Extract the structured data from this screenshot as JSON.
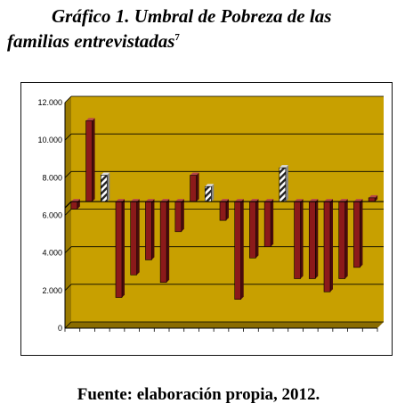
{
  "figure": {
    "title_line1": "Gráfico 1. Umbral de Pobreza de las",
    "title_line2": "familias entrevistadas",
    "footnote_marker": "7",
    "source": "Fuente: elaboración propia, 2012."
  },
  "colors": {
    "plot_background": "#c8a000",
    "wall_side": "#9a7a00",
    "floor": "#8a6c00",
    "bar_front": "#8b1a1a",
    "bar_side": "#4a0c0c",
    "bar_top": "#b84848",
    "threshold_fill": "#ffffff",
    "threshold_hatch": "#222222"
  },
  "chart_data": {
    "type": "bar",
    "style": "3d floating bars measured from the poverty line",
    "title": "",
    "xlabel": "",
    "ylabel": "",
    "baseline": 6400,
    "ylim": [
      0,
      12000
    ],
    "yticks": [
      0,
      2000,
      4000,
      6000,
      8000,
      10000,
      12000
    ],
    "ytick_labels": [
      "0",
      "2.000",
      "4.000",
      "6.000",
      "8.000",
      "10.000",
      "12.000"
    ],
    "grid": "horizontal",
    "legend": "none",
    "bars": [
      {
        "value": 6000,
        "kind": "family"
      },
      {
        "value": 10700,
        "kind": "family"
      },
      {
        "value": 7800,
        "kind": "threshold"
      },
      {
        "value": 1300,
        "kind": "family"
      },
      {
        "value": 2500,
        "kind": "family"
      },
      {
        "value": 3300,
        "kind": "family"
      },
      {
        "value": 2100,
        "kind": "family"
      },
      {
        "value": 4800,
        "kind": "family"
      },
      {
        "value": 7800,
        "kind": "family"
      },
      {
        "value": 7200,
        "kind": "threshold"
      },
      {
        "value": 5400,
        "kind": "family"
      },
      {
        "value": 1200,
        "kind": "family"
      },
      {
        "value": 3400,
        "kind": "family"
      },
      {
        "value": 4000,
        "kind": "family"
      },
      {
        "value": 8200,
        "kind": "threshold"
      },
      {
        "value": 2300,
        "kind": "family"
      },
      {
        "value": 2300,
        "kind": "family"
      },
      {
        "value": 1600,
        "kind": "family"
      },
      {
        "value": 2300,
        "kind": "family"
      },
      {
        "value": 2900,
        "kind": "family"
      },
      {
        "value": 6600,
        "kind": "family"
      }
    ]
  }
}
